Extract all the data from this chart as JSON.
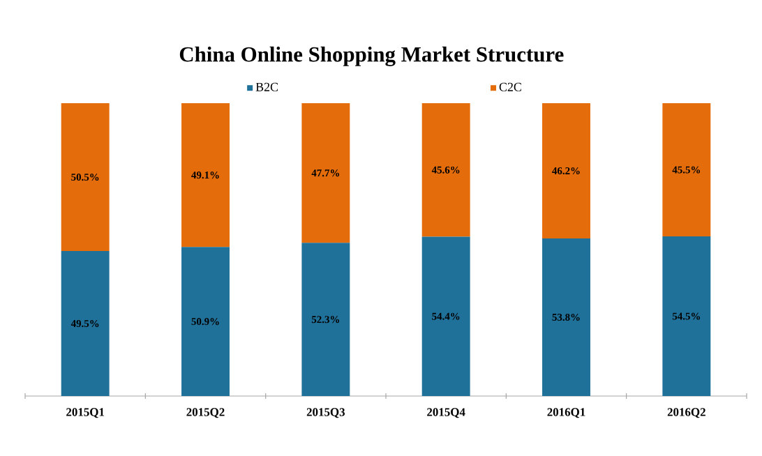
{
  "chart_data": {
    "type": "bar",
    "stacked": true,
    "title": "China Online Shopping Market Structure",
    "categories": [
      "2015Q1",
      "2015Q2",
      "2015Q3",
      "2015Q4",
      "2016Q1",
      "2016Q2"
    ],
    "ylim": [
      0,
      100
    ],
    "series": [
      {
        "name": "B2C",
        "color": "#20719a",
        "values": [
          49.5,
          50.9,
          52.3,
          54.4,
          53.8,
          54.5
        ],
        "value_labels": [
          "49.5%",
          "50.9%",
          "52.3%",
          "54.4%",
          "53.8%",
          "54.5%"
        ]
      },
      {
        "name": "C2C",
        "color": "#e46c0a",
        "values": [
          50.5,
          49.1,
          47.7,
          45.6,
          46.2,
          45.5
        ],
        "value_labels": [
          "50.5%",
          "49.1%",
          "47.7%",
          "45.6%",
          "46.2%",
          "45.5%"
        ]
      }
    ],
    "legend": "top"
  }
}
